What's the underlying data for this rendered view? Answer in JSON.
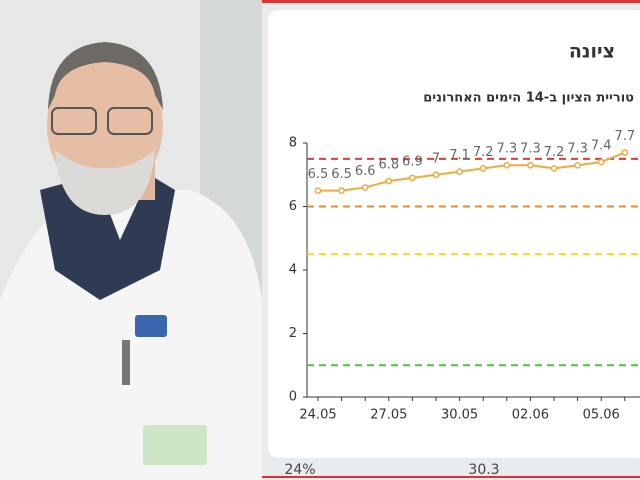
{
  "chart_data": {
    "type": "line",
    "title": "ציונה",
    "subtitle": "טוריית הציון ב-14 הימים האחרונים",
    "categories": [
      "24.05",
      null,
      null,
      "27.05",
      null,
      null,
      "30.05",
      null,
      null,
      "02.06",
      null,
      null,
      "05.06",
      null
    ],
    "series": [
      {
        "name": "ציון",
        "color": "#f5a840",
        "values": [
          6.5,
          6.5,
          6.6,
          6.8,
          6.9,
          7,
          7.1,
          7.2,
          7.3,
          7.3,
          7.2,
          7.3,
          7.4,
          7.7
        ]
      }
    ],
    "ylim": [
      0,
      8
    ],
    "yticks": [
      0,
      2,
      4,
      6,
      8
    ],
    "grid": false,
    "thresholds": [
      {
        "value": 7.5,
        "color": "#e53935"
      },
      {
        "value": 6,
        "color": "#f08c1e"
      },
      {
        "value": 4.5,
        "color": "#e8e021"
      },
      {
        "value": 1,
        "color": "#3ccf2e"
      }
    ]
  },
  "summary_values": [
    "24%",
    "30.3"
  ]
}
